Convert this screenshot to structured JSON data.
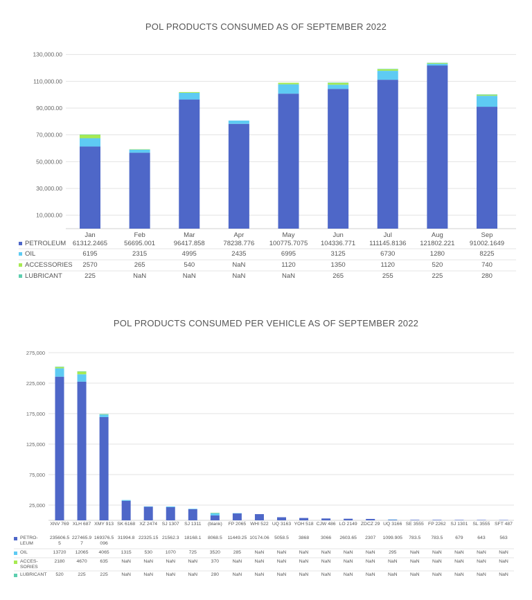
{
  "charts": [
    {
      "title": "POL PRODUCTS CONSUMED AS OF SEPTEMBER 2022",
      "chart_data": {
        "type": "bar",
        "stacked": true,
        "categories": [
          "Jan",
          "Feb",
          "Mar",
          "Apr",
          "May",
          "Jun",
          "Jul",
          "Aug",
          "Sep"
        ],
        "series": [
          {
            "name": "PETROLEUM",
            "label": "PETROLEUM",
            "color": "#4e67c8",
            "values": [
              61312.2465,
              56695.001,
              96417.858,
              78238.776,
              100775.7075,
              104336.771,
              111145.8136,
              121802.221,
              91002.1649
            ]
          },
          {
            "name": "OIL",
            "label": "OIL",
            "color": "#5ecbf3",
            "values": [
              6195,
              2315,
              4995,
              2435,
              6995,
              3125,
              6730,
              1280,
              8225
            ]
          },
          {
            "name": "ACCESSORIES",
            "label": "ACCESSORIES",
            "color": "#a7ea52",
            "values": [
              2570,
              265,
              540,
              null,
              1120,
              1350,
              1120,
              520,
              740
            ]
          },
          {
            "name": "LUBRICANT",
            "label": "LUBRICANT",
            "color": "#5dceaf",
            "values": [
              225,
              null,
              null,
              null,
              null,
              265,
              255,
              225,
              280
            ]
          }
        ],
        "yticks": [
          "10,000.00",
          "30,000.00",
          "50,000.00",
          "70,000.00",
          "90,000.00",
          "110,000.00",
          "130,000.00"
        ],
        "ytick_values": [
          10000,
          30000,
          50000,
          70000,
          90000,
          110000,
          130000
        ],
        "ylim": [
          0,
          130000
        ],
        "grid": true,
        "legend": "data-table-bottom",
        "missing_label": "NaN"
      }
    },
    {
      "title": "POL PRODUCTS CONSUMED PER VEHICLE AS OF SEPTEMBER 2022",
      "chart_data": {
        "type": "bar",
        "stacked": true,
        "categories": [
          "XNV 769",
          "XLH 687",
          "XMY 913",
          "SK 6168",
          "XZ 2474",
          "SJ 1307",
          "SJ 1311",
          "(blank)",
          "FP 2065",
          "WHI 522",
          "UQ 3163",
          "YOH 518",
          "CJW 486",
          "LO 2149",
          "ZDCZ 29",
          "UQ 3166",
          "SE 3555",
          "FP 2262",
          "SJ 1301",
          "SL 3555",
          "SFT 487"
        ],
        "series": [
          {
            "name": "PETROLEUM",
            "label": "PETRO-LEUM",
            "color": "#4e67c8",
            "values": [
              235606.55,
              227465.97,
              169376.5096,
              31994.8,
              22325.15,
              21562.3,
              18168.1,
              8068.5,
              11449.25,
              10174.06,
              5058.5,
              3868,
              3066,
              2603.65,
              2307,
              1099.905,
              783.5,
              783.5,
              679,
              643,
              563
            ]
          },
          {
            "name": "OIL",
            "label": "OIL",
            "color": "#5ecbf3",
            "values": [
              13720,
              12065,
              4065,
              1315,
              530,
              1070,
              725,
              3520,
              285,
              null,
              null,
              null,
              null,
              null,
              null,
              295,
              null,
              null,
              null,
              null,
              null
            ]
          },
          {
            "name": "ACCESSORIES",
            "label": "ACCES-SORIES",
            "color": "#a7ea52",
            "values": [
              2180,
              4670,
              635,
              null,
              null,
              null,
              null,
              370,
              null,
              null,
              null,
              null,
              null,
              null,
              null,
              null,
              null,
              null,
              null,
              null,
              null
            ]
          },
          {
            "name": "LUBRICANT",
            "label": "LUBRICANT",
            "color": "#5dceaf",
            "values": [
              520,
              225,
              225,
              null,
              null,
              null,
              null,
              280,
              null,
              null,
              null,
              null,
              null,
              null,
              null,
              null,
              null,
              null,
              null,
              null,
              null
            ]
          }
        ],
        "yticks": [
          "25,000",
          "75,000",
          "125,000",
          "175,000",
          "225,000",
          "275,000"
        ],
        "ytick_values": [
          25000,
          75000,
          125000,
          175000,
          225000,
          275000
        ],
        "ylim": [
          0,
          275000
        ],
        "grid": true,
        "legend": "data-table-bottom",
        "missing_label": "NaN"
      }
    }
  ]
}
